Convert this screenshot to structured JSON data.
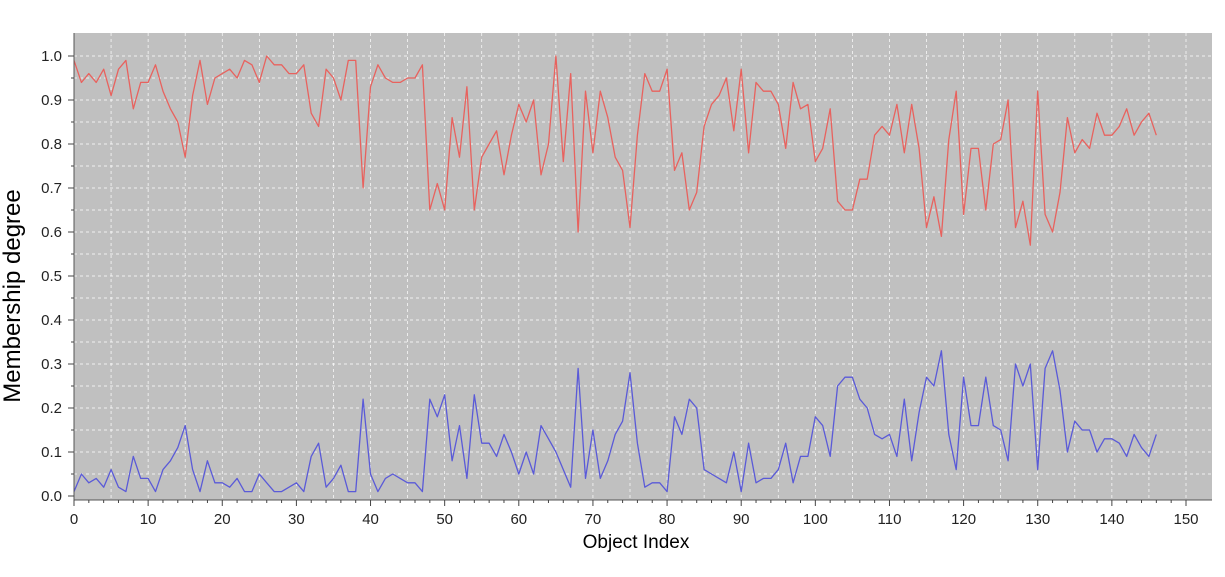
{
  "chart_data": {
    "type": "line",
    "xlabel": "Object Index",
    "ylabel": "Membership degree",
    "xlim": [
      0,
      150
    ],
    "ylim": [
      0,
      1.05
    ],
    "x_ticks": [
      0,
      10,
      20,
      30,
      40,
      50,
      60,
      70,
      80,
      90,
      100,
      110,
      120,
      130,
      140,
      150
    ],
    "y_ticks": [
      0.0,
      0.1,
      0.2,
      0.3,
      0.4,
      0.5,
      0.6,
      0.7,
      0.8,
      0.9,
      1.0
    ],
    "x_tick_labels": [
      "0",
      "10",
      "20",
      "30",
      "40",
      "50",
      "60",
      "70",
      "80",
      "90",
      "100",
      "110",
      "120",
      "130",
      "140",
      "150"
    ],
    "y_tick_labels": [
      "0.0",
      "0.1",
      "0.2",
      "0.3",
      "0.4",
      "0.5",
      "0.6",
      "0.7",
      "0.8",
      "0.9",
      "1.0"
    ],
    "grid": true,
    "x": [
      0,
      1,
      2,
      3,
      4,
      5,
      6,
      7,
      8,
      9,
      10,
      11,
      12,
      13,
      14,
      15,
      16,
      17,
      18,
      19,
      20,
      21,
      22,
      23,
      24,
      25,
      26,
      27,
      28,
      29,
      30,
      31,
      32,
      33,
      34,
      35,
      36,
      37,
      38,
      39,
      40,
      41,
      42,
      43,
      44,
      45,
      46,
      47,
      48,
      49,
      50,
      51,
      52,
      53,
      54,
      55,
      56,
      57,
      58,
      59,
      60,
      61,
      62,
      63,
      64,
      65,
      66,
      67,
      68,
      69,
      70,
      71,
      72,
      73,
      74,
      75,
      76,
      77,
      78,
      79,
      80,
      81,
      82,
      83,
      84,
      85,
      86,
      87,
      88,
      89,
      90,
      91,
      92,
      93,
      94,
      95,
      96,
      97,
      98,
      99,
      100,
      101,
      102,
      103,
      104,
      105,
      106,
      107,
      108,
      109,
      110,
      111,
      112,
      113,
      114,
      115,
      116,
      117,
      118,
      119,
      120,
      121,
      122,
      123,
      124,
      125,
      126,
      127,
      128,
      129,
      130,
      131,
      132,
      133,
      134,
      135,
      136,
      137,
      138,
      139,
      140,
      141,
      142,
      143,
      144,
      145,
      146
    ],
    "series": [
      {
        "color": "#e8625e",
        "values": [
          0.99,
          0.94,
          0.96,
          0.94,
          0.97,
          0.91,
          0.97,
          0.99,
          0.88,
          0.94,
          0.94,
          0.98,
          0.92,
          0.88,
          0.85,
          0.77,
          0.91,
          0.99,
          0.89,
          0.95,
          0.96,
          0.97,
          0.95,
          0.99,
          0.98,
          0.94,
          1.0,
          0.98,
          0.98,
          0.96,
          0.96,
          0.98,
          0.87,
          0.84,
          0.97,
          0.95,
          0.9,
          0.99,
          0.99,
          0.7,
          0.93,
          0.98,
          0.95,
          0.94,
          0.94,
          0.95,
          0.95,
          0.98,
          0.65,
          0.71,
          0.65,
          0.86,
          0.77,
          0.93,
          0.65,
          0.77,
          0.8,
          0.83,
          0.73,
          0.82,
          0.89,
          0.85,
          0.9,
          0.73,
          0.8,
          1.0,
          0.76,
          0.96,
          0.6,
          0.92,
          0.78,
          0.92,
          0.86,
          0.77,
          0.74,
          0.61,
          0.82,
          0.96,
          0.92,
          0.92,
          0.97,
          0.74,
          0.78,
          0.65,
          0.69,
          0.84,
          0.89,
          0.91,
          0.95,
          0.83,
          0.97,
          0.78,
          0.94,
          0.92,
          0.92,
          0.89,
          0.79,
          0.94,
          0.88,
          0.89,
          0.76,
          0.79,
          0.88,
          0.67,
          0.65,
          0.65,
          0.72,
          0.72,
          0.82,
          0.84,
          0.82,
          0.89,
          0.78,
          0.89,
          0.79,
          0.61,
          0.68,
          0.59,
          0.81,
          0.92,
          0.64,
          0.79,
          0.79,
          0.65,
          0.8,
          0.81,
          0.9,
          0.61,
          0.67,
          0.57,
          0.92,
          0.64,
          0.6,
          0.69,
          0.86,
          0.78,
          0.81,
          0.79,
          0.87,
          0.82,
          0.82,
          0.84,
          0.88,
          0.82,
          0.85,
          0.87,
          0.82
        ]
      },
      {
        "color": "#5a5ad8",
        "values": [
          0.01,
          0.05,
          0.03,
          0.04,
          0.02,
          0.06,
          0.02,
          0.01,
          0.09,
          0.04,
          0.04,
          0.01,
          0.06,
          0.08,
          0.11,
          0.16,
          0.06,
          0.01,
          0.08,
          0.03,
          0.03,
          0.02,
          0.04,
          0.01,
          0.01,
          0.05,
          0.03,
          0.01,
          0.01,
          0.02,
          0.03,
          0.01,
          0.09,
          0.12,
          0.02,
          0.04,
          0.07,
          0.01,
          0.01,
          0.22,
          0.05,
          0.01,
          0.04,
          0.05,
          0.04,
          0.03,
          0.03,
          0.01,
          0.22,
          0.18,
          0.23,
          0.08,
          0.16,
          0.04,
          0.23,
          0.12,
          0.12,
          0.09,
          0.14,
          0.1,
          0.05,
          0.1,
          0.05,
          0.16,
          0.13,
          0.1,
          0.06,
          0.02,
          0.29,
          0.04,
          0.15,
          0.04,
          0.08,
          0.14,
          0.17,
          0.28,
          0.12,
          0.02,
          0.03,
          0.03,
          0.01,
          0.18,
          0.14,
          0.22,
          0.2,
          0.06,
          0.05,
          0.04,
          0.03,
          0.1,
          0.01,
          0.12,
          0.03,
          0.04,
          0.04,
          0.06,
          0.12,
          0.03,
          0.09,
          0.09,
          0.18,
          0.16,
          0.09,
          0.25,
          0.27,
          0.27,
          0.22,
          0.2,
          0.14,
          0.13,
          0.14,
          0.09,
          0.22,
          0.08,
          0.19,
          0.27,
          0.25,
          0.33,
          0.14,
          0.06,
          0.27,
          0.16,
          0.16,
          0.27,
          0.16,
          0.15,
          0.08,
          0.3,
          0.25,
          0.3,
          0.06,
          0.29,
          0.33,
          0.24,
          0.1,
          0.17,
          0.15,
          0.15,
          0.1,
          0.13,
          0.13,
          0.12,
          0.09,
          0.14,
          0.11,
          0.09,
          0.14
        ]
      }
    ]
  }
}
